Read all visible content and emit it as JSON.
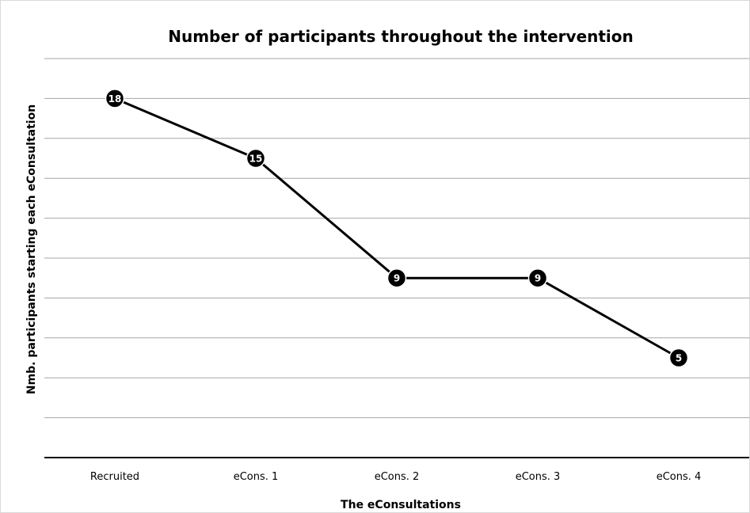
{
  "chart_data": {
    "type": "line",
    "title": "Number of participants throughout the intervention",
    "xlabel": "The eConsultations",
    "ylabel": "Nmb. participants starting each eConsultation",
    "categories": [
      "Recruited",
      "eCons. 1",
      "eCons. 2",
      "eCons. 3",
      "eCons. 4"
    ],
    "series": [
      {
        "values": [
          18,
          15,
          9,
          9,
          5
        ],
        "color": "#000000"
      }
    ],
    "ylim": [
      0,
      20
    ],
    "y_tick_step": 2,
    "y_tick_labels_shown": false,
    "data_labels": true,
    "grid": true,
    "legend": "none",
    "colors": {
      "gridline": "#a6a6a6",
      "axis": "#000000",
      "line": "#000000",
      "marker": "#000000",
      "label_text": "#ffffff"
    }
  }
}
